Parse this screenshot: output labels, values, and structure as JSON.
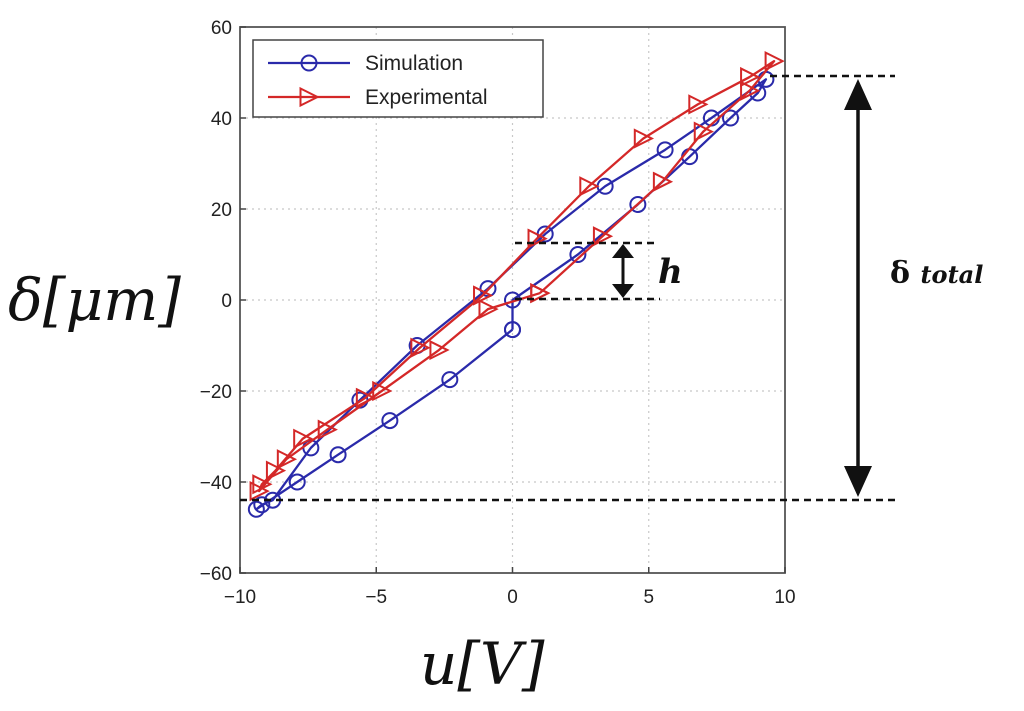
{
  "chart_data": {
    "type": "line",
    "xlim": [
      -10,
      10
    ],
    "ylim": [
      -60,
      60
    ],
    "x_ticks": [
      "−10",
      "−5",
      "0",
      "5",
      "10"
    ],
    "x_tick_values": [
      -10,
      -5,
      0,
      5,
      10
    ],
    "y_ticks": [
      "60",
      "40",
      "20",
      "0",
      "−20",
      "−40",
      "−60"
    ],
    "y_tick_values": [
      60,
      40,
      20,
      0,
      -20,
      -40,
      -60
    ],
    "xlabel": "u[V]",
    "ylabel": "δ[μm]",
    "grid": true,
    "legend_position": "top-left",
    "series": [
      {
        "name": "Simulation",
        "color": "#2a2aaa",
        "marker": "circle",
        "x": [
          0,
          0,
          2.4,
          4.6,
          6.5,
          8.0,
          9.0,
          9.3,
          7.3,
          5.6,
          3.4,
          1.2,
          -0.9,
          -3.5,
          -5.6,
          -7.4,
          -8.8,
          -9.2,
          -9.4,
          -7.9,
          -6.4,
          -4.5,
          -2.3,
          0
        ],
        "y": [
          -6.5,
          0,
          10,
          21,
          31.5,
          40,
          45.5,
          48.5,
          40,
          33,
          25,
          14.5,
          2.5,
          -10,
          -22,
          -32.5,
          -44,
          -45,
          -46,
          -40,
          -34,
          -26.5,
          -17.5,
          -6.5
        ]
      },
      {
        "name": "Experimental",
        "color": "#d42828",
        "marker": "triangle-right",
        "x": [
          1.0,
          3.3,
          5.5,
          7.0,
          8.7,
          9.6,
          8.7,
          6.8,
          4.8,
          2.8,
          0.9,
          -1.1,
          -3.4,
          -5.4,
          -7.7,
          -8.7,
          -9.2,
          -9.3,
          -8.3,
          -6.8,
          -4.8,
          -2.7,
          -0.9,
          1.0
        ],
        "y": [
          1.5,
          14,
          26,
          37,
          46,
          52.5,
          49,
          43,
          35.5,
          25,
          13.5,
          1,
          -10.5,
          -21.5,
          -30.5,
          -37.5,
          -40.5,
          -42,
          -35,
          -28.5,
          -20,
          -11,
          -2,
          1.5
        ]
      }
    ],
    "annotations": {
      "h": "h",
      "delta_main": "δ",
      "delta_sub": "total"
    }
  }
}
